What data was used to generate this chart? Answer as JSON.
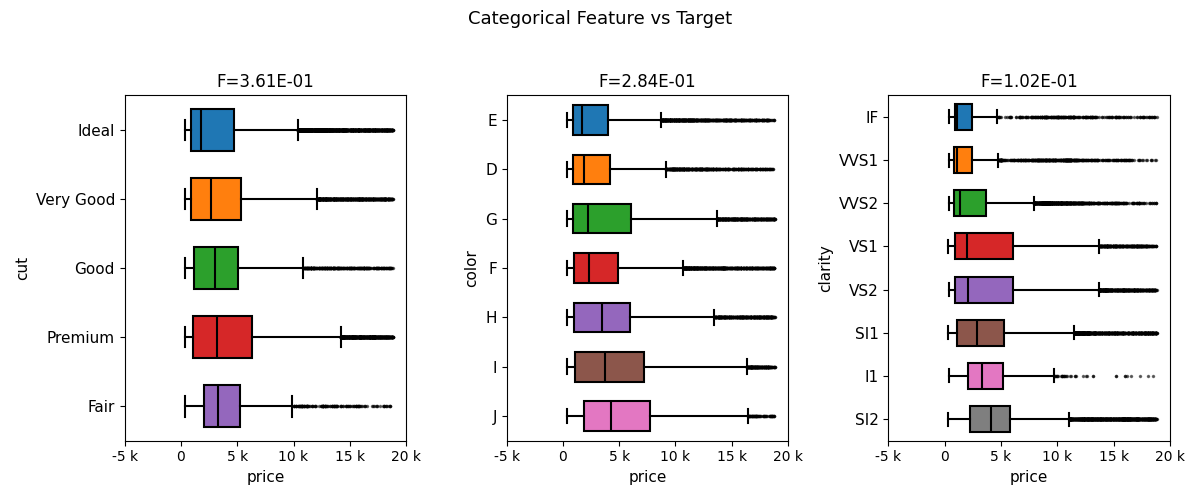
{
  "suptitle": "Categorical Feature vs Target",
  "subplots": [
    {
      "feature": "cut",
      "f_stat": "F=3.61E-01",
      "ylabel": "cut",
      "xlabel": "price",
      "categories": [
        "Ideal",
        "Very Good",
        "Good",
        "Premium",
        "Fair"
      ],
      "colors": [
        "#1f77b4",
        "#ff7f0e",
        "#2ca02c",
        "#d62728",
        "#9467bd"
      ],
      "xlim": [
        -5000,
        20000
      ],
      "xticks": [
        -5000,
        0,
        5000,
        10000,
        15000,
        20000
      ],
      "xticklabels": [
        "-5 k",
        "0",
        "5 k",
        "10 k",
        "15 k",
        "20 k"
      ]
    },
    {
      "feature": "color",
      "f_stat": "F=2.84E-01",
      "ylabel": "color",
      "xlabel": "price",
      "categories": [
        "E",
        "D",
        "G",
        "F",
        "H",
        "I",
        "J"
      ],
      "colors": [
        "#1f77b4",
        "#ff7f0e",
        "#2ca02c",
        "#d62728",
        "#9467bd",
        "#8c564b",
        "#e377c2"
      ],
      "xlim": [
        -5000,
        20000
      ],
      "xticks": [
        -5000,
        0,
        5000,
        10000,
        15000,
        20000
      ],
      "xticklabels": [
        "-5 k",
        "0",
        "5 k",
        "10 k",
        "15 k",
        "20 k"
      ]
    },
    {
      "feature": "clarity",
      "f_stat": "F=1.02E-01",
      "ylabel": "clarity",
      "xlabel": "price",
      "categories": [
        "IF",
        "VVS1",
        "VVS2",
        "VS1",
        "VS2",
        "SI1",
        "I1",
        "SI2"
      ],
      "colors": [
        "#1f77b4",
        "#ff7f0e",
        "#2ca02c",
        "#d62728",
        "#9467bd",
        "#8c564b",
        "#e377c2",
        "#7f7f7f"
      ],
      "xlim": [
        -5000,
        20000
      ],
      "xticks": [
        -5000,
        0,
        5000,
        10000,
        15000,
        20000
      ],
      "xticklabels": [
        "-5 k",
        "0",
        "5 k",
        "10 k",
        "15 k",
        "20 k"
      ]
    }
  ]
}
